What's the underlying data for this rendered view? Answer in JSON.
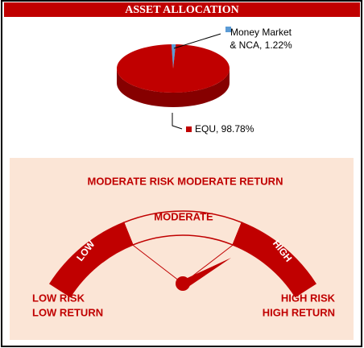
{
  "chart_data": {
    "type": "pie",
    "title": "ASSET ALLOCATION",
    "values": [
      1.22,
      98.78
    ],
    "value_labels": [
      "Money Market & NCA, 1.22%",
      "EQU, 98.78%"
    ],
    "colors": [
      "#5b9bd5",
      "#c00000"
    ]
  },
  "riskometer": {
    "title": "MODERATE RISK MODERATE RETURN",
    "levels": [
      "LOW",
      "MODERATE",
      "HIGH"
    ],
    "left_label": [
      "LOW RISK",
      "LOW RETURN"
    ],
    "right_label": [
      "HIGH RISK",
      "HIGH RETURN"
    ]
  }
}
